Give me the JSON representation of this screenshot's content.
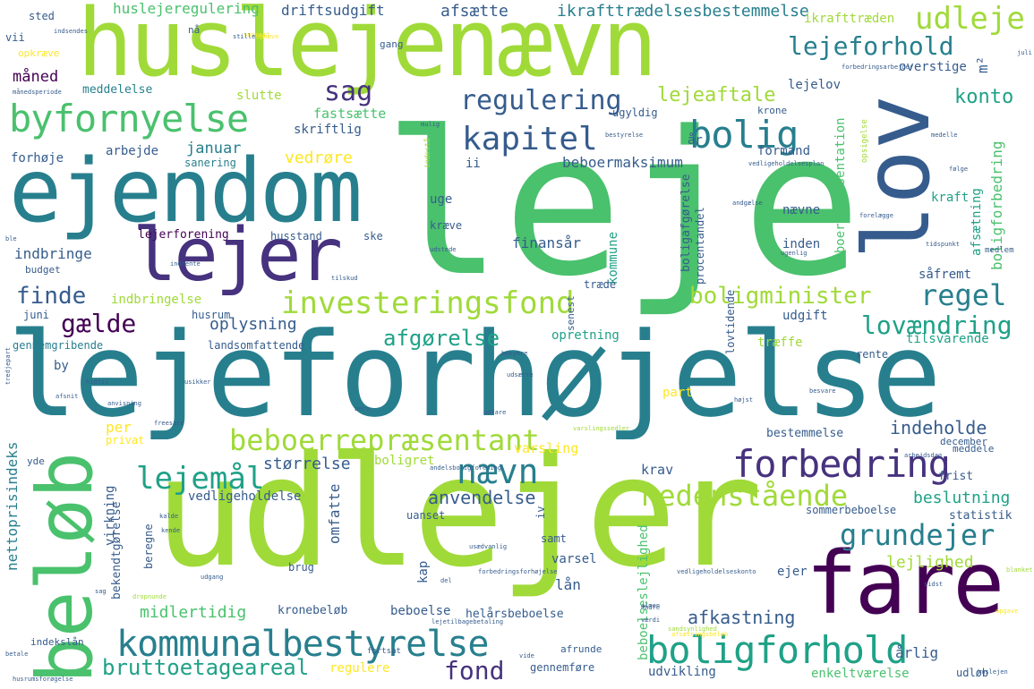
{
  "palette": [
    "#440154",
    "#46327e",
    "#365c8d",
    "#277f8e",
    "#1fa187",
    "#4ac16d",
    "#a0da39",
    "#fde725"
  ],
  "words": [
    {
      "text": "leje",
      "color": "#4ac16d",
      "vertical": false
    },
    {
      "text": "lejeforhøjelse",
      "color": "#277f8e",
      "vertical": false
    },
    {
      "text": "udlejer",
      "color": "#a0da39",
      "vertical": false
    },
    {
      "text": "huslejenævn",
      "color": "#a0da39",
      "vertical": false
    },
    {
      "text": "ejendom",
      "color": "#277f8e",
      "vertical": false
    },
    {
      "text": "lov",
      "color": "#365c8d",
      "vertical": true
    },
    {
      "text": "fare",
      "color": "#440154",
      "vertical": false
    },
    {
      "text": "beløb",
      "color": "#4ac16d",
      "vertical": true
    },
    {
      "text": "lejer",
      "color": "#46327e",
      "vertical": false
    },
    {
      "text": "byfornyelse",
      "color": "#4ac16d",
      "vertical": false
    },
    {
      "text": "kommunalbestyrelse",
      "color": "#277f8e",
      "vertical": false
    },
    {
      "text": "forbedring",
      "color": "#46327e",
      "vertical": false
    },
    {
      "text": "boligforhold",
      "color": "#1fa187",
      "vertical": false
    },
    {
      "text": "beboerrepræsentant",
      "color": "#a0da39",
      "vertical": false
    },
    {
      "text": "investeringsfond",
      "color": "#a0da39",
      "vertical": false
    },
    {
      "text": "nedenstående",
      "color": "#a0da39",
      "vertical": false
    },
    {
      "text": "nævn",
      "color": "#277f8e",
      "vertical": false
    },
    {
      "text": "bolig",
      "color": "#277f8e",
      "vertical": false
    },
    {
      "text": "kapitel",
      "color": "#365c8d",
      "vertical": false
    },
    {
      "text": "regulering",
      "color": "#365c8d",
      "vertical": false
    },
    {
      "text": "udleje",
      "color": "#a0da39",
      "vertical": false
    },
    {
      "text": "lejeforhold",
      "color": "#277f8e",
      "vertical": false
    },
    {
      "text": "grundejer",
      "color": "#277f8e",
      "vertical": false
    },
    {
      "text": "lejemål",
      "color": "#1fa187",
      "vertical": false
    },
    {
      "text": "boligminister",
      "color": "#a0da39",
      "vertical": false
    },
    {
      "text": "regel",
      "color": "#277f8e",
      "vertical": false
    },
    {
      "text": "lovændring",
      "color": "#1fa187",
      "vertical": false
    },
    {
      "text": "fond",
      "color": "#46327e",
      "vertical": false
    },
    {
      "text": "bruttoetageareal",
      "color": "#1fa187",
      "vertical": false
    },
    {
      "text": "afgørelse",
      "color": "#1fa187",
      "vertical": false
    },
    {
      "text": "sag",
      "color": "#46327e",
      "vertical": false
    },
    {
      "text": "gælde",
      "color": "#440154",
      "vertical": false
    },
    {
      "text": "finde",
      "color": "#365c8d",
      "vertical": false
    },
    {
      "text": "lejeaftale",
      "color": "#a0da39",
      "vertical": false
    },
    {
      "text": "konto",
      "color": "#1fa187",
      "vertical": false
    },
    {
      "text": "afkastning",
      "color": "#365c8d",
      "vertical": false
    },
    {
      "text": "anvendelse",
      "color": "#365c8d",
      "vertical": false
    },
    {
      "text": "beslutning",
      "color": "#1fa187",
      "vertical": false
    },
    {
      "text": "indeholde",
      "color": "#365c8d",
      "vertical": false
    },
    {
      "text": "midlertidig",
      "color": "#4ac16d",
      "vertical": false
    },
    {
      "text": "lejlighed",
      "color": "#a0da39",
      "vertical": false
    },
    {
      "text": "størrelse",
      "color": "#365c8d",
      "vertical": false
    },
    {
      "text": "oplysning",
      "color": "#365c8d",
      "vertical": false
    },
    {
      "text": "ikrafttrædelsesbestemmelse",
      "color": "#277f8e",
      "vertical": false
    },
    {
      "text": "huslejeregulering",
      "color": "#4ac16d",
      "vertical": false
    },
    {
      "text": "driftsudgift",
      "color": "#365c8d",
      "vertical": false
    },
    {
      "text": "afsætte",
      "color": "#365c8d",
      "vertical": false
    },
    {
      "text": "ikrafttræden",
      "color": "#a0da39",
      "vertical": false
    },
    {
      "text": "sted",
      "color": "#365c8d",
      "vertical": false
    },
    {
      "text": "vii",
      "color": "#365c8d",
      "vertical": false
    },
    {
      "text": "nå",
      "color": "#365c8d",
      "vertical": false
    },
    {
      "text": "opkræve",
      "color": "#fde725",
      "vertical": false
    },
    {
      "text": "gang",
      "color": "#365c8d",
      "vertical": false
    },
    {
      "text": "måned",
      "color": "#440154",
      "vertical": false
    },
    {
      "text": "meddelelse",
      "color": "#277f8e",
      "vertical": false
    },
    {
      "text": "slutte",
      "color": "#a0da39",
      "vertical": false
    },
    {
      "text": "fastsætte",
      "color": "#4ac16d",
      "vertical": false
    },
    {
      "text": "skriftlig",
      "color": "#365c8d",
      "vertical": false
    },
    {
      "text": "ugyldig",
      "color": "#365c8d",
      "vertical": false
    },
    {
      "text": "krone",
      "color": "#365c8d",
      "vertical": false
    },
    {
      "text": "lejelov",
      "color": "#365c8d",
      "vertical": false
    },
    {
      "text": "overstige",
      "color": "#365c8d",
      "vertical": false
    },
    {
      "text": "m²",
      "color": "#365c8d",
      "vertical": true
    },
    {
      "text": "år",
      "color": "#365c8d",
      "vertical": false
    },
    {
      "text": "formand",
      "color": "#365c8d",
      "vertical": false
    },
    {
      "text": "beboermaksimum",
      "color": "#365c8d",
      "vertical": false
    },
    {
      "text": "januar",
      "color": "#277f8e",
      "vertical": false
    },
    {
      "text": "arbejde",
      "color": "#365c8d",
      "vertical": false
    },
    {
      "text": "forhøje",
      "color": "#365c8d",
      "vertical": false
    },
    {
      "text": "sanering",
      "color": "#277f8e",
      "vertical": false
    },
    {
      "text": "vedrøre",
      "color": "#fde725",
      "vertical": false
    },
    {
      "text": "ii",
      "color": "#365c8d",
      "vertical": false
    },
    {
      "text": "uge",
      "color": "#365c8d",
      "vertical": false
    },
    {
      "text": "kræve",
      "color": "#365c8d",
      "vertical": false
    },
    {
      "text": "ske",
      "color": "#365c8d",
      "vertical": false
    },
    {
      "text": "husstand",
      "color": "#365c8d",
      "vertical": false
    },
    {
      "text": "lejerforening",
      "color": "#440154",
      "vertical": false
    },
    {
      "text": "indbringe",
      "color": "#365c8d",
      "vertical": false
    },
    {
      "text": "budget",
      "color": "#365c8d",
      "vertical": false
    },
    {
      "text": "finansår",
      "color": "#365c8d",
      "vertical": false
    },
    {
      "text": "kommune",
      "color": "#1fa187",
      "vertical": true
    },
    {
      "text": "nævne",
      "color": "#365c8d",
      "vertical": false
    },
    {
      "text": "kraft",
      "color": "#1fa187",
      "vertical": false
    },
    {
      "text": "inden",
      "color": "#365c8d",
      "vertical": false
    },
    {
      "text": "såfremt",
      "color": "#365c8d",
      "vertical": false
    },
    {
      "text": "boligforbedring",
      "color": "#4ac16d",
      "vertical": true
    },
    {
      "text": "afsætning",
      "color": "#1fa187",
      "vertical": true
    },
    {
      "text": "beboerrepræsentation",
      "color": "#4ac16d",
      "vertical": true
    },
    {
      "text": "boligafgørelse",
      "color": "#365c8d",
      "vertical": true
    },
    {
      "text": "procentandel",
      "color": "#365c8d",
      "vertical": true
    },
    {
      "text": "træde",
      "color": "#365c8d",
      "vertical": false
    },
    {
      "text": "senest",
      "color": "#365c8d",
      "vertical": true
    },
    {
      "text": "indbringelse",
      "color": "#a0da39",
      "vertical": false
    },
    {
      "text": "husrum",
      "color": "#365c8d",
      "vertical": false
    },
    {
      "text": "juni",
      "color": "#365c8d",
      "vertical": false
    },
    {
      "text": "udgift",
      "color": "#365c8d",
      "vertical": false
    },
    {
      "text": "lovtidende",
      "color": "#365c8d",
      "vertical": true
    },
    {
      "text": "gennemgribende",
      "color": "#277f8e",
      "vertical": false
    },
    {
      "text": "landsomfattende",
      "color": "#365c8d",
      "vertical": false
    },
    {
      "text": "opretning",
      "color": "#1fa187",
      "vertical": false
    },
    {
      "text": "træffe",
      "color": "#a0da39",
      "vertical": false
    },
    {
      "text": "tilsvarende",
      "color": "#1fa187",
      "vertical": false
    },
    {
      "text": "rente",
      "color": "#365c8d",
      "vertical": false
    },
    {
      "text": "by",
      "color": "#365c8d",
      "vertical": false
    },
    {
      "text": "part",
      "color": "#fde725",
      "vertical": false
    },
    {
      "text": "per",
      "color": "#fde725",
      "vertical": false
    },
    {
      "text": "privat",
      "color": "#fde725",
      "vertical": false
    },
    {
      "text": "bestemmelse",
      "color": "#365c8d",
      "vertical": false
    },
    {
      "text": "december",
      "color": "#365c8d",
      "vertical": false
    },
    {
      "text": "meddele",
      "color": "#365c8d",
      "vertical": false
    },
    {
      "text": "varsling",
      "color": "#fde725",
      "vertical": false
    },
    {
      "text": "boligret",
      "color": "#a0da39",
      "vertical": false
    },
    {
      "text": "krav",
      "color": "#365c8d",
      "vertical": false
    },
    {
      "text": "frist",
      "color": "#365c8d",
      "vertical": false
    },
    {
      "text": "nettoprisindeks",
      "color": "#277f8e",
      "vertical": true
    },
    {
      "text": "yde",
      "color": "#365c8d",
      "vertical": false
    },
    {
      "text": "virkning",
      "color": "#365c8d",
      "vertical": true
    },
    {
      "text": "bekendtgørelse",
      "color": "#365c8d",
      "vertical": true
    },
    {
      "text": "vedligeholdelse",
      "color": "#365c8d",
      "vertical": false
    },
    {
      "text": "omfatte",
      "color": "#365c8d",
      "vertical": true
    },
    {
      "text": "beregne",
      "color": "#365c8d",
      "vertical": true
    },
    {
      "text": "beboelseslejlighed",
      "color": "#4ac16d",
      "vertical": true
    },
    {
      "text": "uanset",
      "color": "#365c8d",
      "vertical": false
    },
    {
      "text": "sommerbeboelse",
      "color": "#365c8d",
      "vertical": false
    },
    {
      "text": "statistik",
      "color": "#365c8d",
      "vertical": false
    },
    {
      "text": "samt",
      "color": "#365c8d",
      "vertical": false
    },
    {
      "text": "iv",
      "color": "#365c8d",
      "vertical": true
    },
    {
      "text": "kap",
      "color": "#365c8d",
      "vertical": true
    },
    {
      "text": "varsel",
      "color": "#365c8d",
      "vertical": false
    },
    {
      "text": "lån",
      "color": "#365c8d",
      "vertical": false
    },
    {
      "text": "brug",
      "color": "#365c8d",
      "vertical": false
    },
    {
      "text": "ejer",
      "color": "#365c8d",
      "vertical": false
    },
    {
      "text": "kronebeløb",
      "color": "#365c8d",
      "vertical": false
    },
    {
      "text": "beboelse",
      "color": "#365c8d",
      "vertical": false
    },
    {
      "text": "helårsbeboelse",
      "color": "#365c8d",
      "vertical": false
    },
    {
      "text": "årlig",
      "color": "#365c8d",
      "vertical": false
    },
    {
      "text": "udløb",
      "color": "#365c8d",
      "vertical": false
    },
    {
      "text": "regulere",
      "color": "#fde725",
      "vertical": false
    },
    {
      "text": "afrunde",
      "color": "#365c8d",
      "vertical": false
    },
    {
      "text": "gennemføre",
      "color": "#365c8d",
      "vertical": false
    },
    {
      "text": "udvikling",
      "color": "#365c8d",
      "vertical": false
    },
    {
      "text": "enkeltværelse",
      "color": "#4ac16d",
      "vertical": false
    },
    {
      "text": "indekslån",
      "color": "#365c8d",
      "vertical": false
    },
    {
      "text": "fortsat",
      "color": "#365c8d",
      "vertical": false
    },
    {
      "text": "husrumsforøgelse",
      "color": "#365c8d",
      "vertical": false
    },
    {
      "text": "lejetilbagebetaling",
      "color": "#365c8d",
      "vertical": false
    },
    {
      "text": "forbedringsforhøjelse",
      "color": "#365c8d",
      "vertical": false
    },
    {
      "text": "vedligeholdelseskonto",
      "color": "#365c8d",
      "vertical": false
    },
    {
      "text": "vedligeholdelsesplan",
      "color": "#365c8d",
      "vertical": false
    },
    {
      "text": "forbedringsarbejder",
      "color": "#365c8d",
      "vertical": false
    },
    {
      "text": "månedsperiode",
      "color": "#365c8d",
      "vertical": false
    },
    {
      "text": "indestå",
      "color": "#a0da39",
      "vertical": true
    },
    {
      "text": "opsigelse",
      "color": "#a0da39",
      "vertical": true
    },
    {
      "text": "bestyrelse",
      "color": "#365c8d",
      "vertical": false
    },
    {
      "text": "forelægge",
      "color": "#365c8d",
      "vertical": false
    },
    {
      "text": "medlem",
      "color": "#365c8d",
      "vertical": false
    },
    {
      "text": "medelle",
      "color": "#365c8d",
      "vertical": false
    },
    {
      "text": "følge",
      "color": "#365c8d",
      "vertical": false
    },
    {
      "text": "tidspunkt",
      "color": "#365c8d",
      "vertical": false
    },
    {
      "text": "udstede",
      "color": "#365c8d",
      "vertical": false
    },
    {
      "text": "andgælse",
      "color": "#365c8d",
      "vertical": false
    },
    {
      "text": "bekymre",
      "color": "#365c8d",
      "vertical": false
    },
    {
      "text": "udfare",
      "color": "#365c8d",
      "vertical": false
    },
    {
      "text": "varslingssedler",
      "color": "#a0da39",
      "vertical": false
    },
    {
      "text": "freesate",
      "color": "#365c8d",
      "vertical": false
    },
    {
      "text": "usikker",
      "color": "#365c8d",
      "vertical": false
    },
    {
      "text": "hidtil",
      "color": "#365c8d",
      "vertical": false
    },
    {
      "text": "anvisning",
      "color": "#365c8d",
      "vertical": false
    },
    {
      "text": "afsnit",
      "color": "#365c8d",
      "vertical": false
    },
    {
      "text": "tilskud",
      "color": "#365c8d",
      "vertical": false
    },
    {
      "text": "udgang",
      "color": "#365c8d",
      "vertical": false
    },
    {
      "text": "sandsynlighed",
      "color": "#a0da39",
      "vertical": false
    },
    {
      "text": "juli",
      "color": "#365c8d",
      "vertical": false
    },
    {
      "text": "sag",
      "color": "#365c8d",
      "vertical": false
    },
    {
      "text": "snarest",
      "color": "#fde725",
      "vertical": false
    },
    {
      "text": "ændre",
      "color": "#365c8d",
      "vertical": false
    },
    {
      "text": "værdi",
      "color": "#365c8d",
      "vertical": false
    },
    {
      "text": "blanket",
      "color": "#a0da39",
      "vertical": false
    },
    {
      "text": "afsætningsbeløb",
      "color": "#fde725",
      "vertical": false
    },
    {
      "text": "opgave",
      "color": "#fde725",
      "vertical": false
    },
    {
      "text": "betale",
      "color": "#365c8d",
      "vertical": false
    },
    {
      "text": "kende",
      "color": "#365c8d",
      "vertical": false
    },
    {
      "text": "besvare",
      "color": "#365c8d",
      "vertical": false
    },
    {
      "text": "dropnunde",
      "color": "#a0da39",
      "vertical": false
    },
    {
      "text": "ugenlig",
      "color": "#365c8d",
      "vertical": false
    },
    {
      "text": "usædvanlig",
      "color": "#365c8d",
      "vertical": false
    },
    {
      "text": "almen",
      "color": "#365c8d",
      "vertical": false
    },
    {
      "text": "del",
      "color": "#365c8d",
      "vertical": false
    },
    {
      "text": "udsætte",
      "color": "#365c8d",
      "vertical": false
    },
    {
      "text": "andelsboligforening",
      "color": "#365c8d",
      "vertical": false
    },
    {
      "text": "indhente",
      "color": "#365c8d",
      "vertical": false
    },
    {
      "text": "ble",
      "color": "#365c8d",
      "vertical": false
    },
    {
      "text": "stille",
      "color": "#365c8d",
      "vertical": false
    },
    {
      "text": "indsendes",
      "color": "#365c8d",
      "vertical": false
    },
    {
      "text": "mulig",
      "color": "#365c8d",
      "vertical": false
    },
    {
      "text": "tredjepart",
      "color": "#365c8d",
      "vertical": true
    },
    {
      "text": "højst",
      "color": "#365c8d",
      "vertical": false
    },
    {
      "text": "kalde",
      "color": "#365c8d",
      "vertical": false
    },
    {
      "text": "bero",
      "color": "#365c8d",
      "vertical": false
    },
    {
      "text": "arbejdsdag",
      "color": "#365c8d",
      "vertical": false
    },
    {
      "text": "ophæve",
      "color": "#fde725",
      "vertical": false
    },
    {
      "text": "vide",
      "color": "#365c8d",
      "vertical": false
    },
    {
      "text": "huslejen",
      "color": "#365c8d",
      "vertical": false
    },
    {
      "text": "sidst",
      "color": "#365c8d",
      "vertical": false
    }
  ]
}
